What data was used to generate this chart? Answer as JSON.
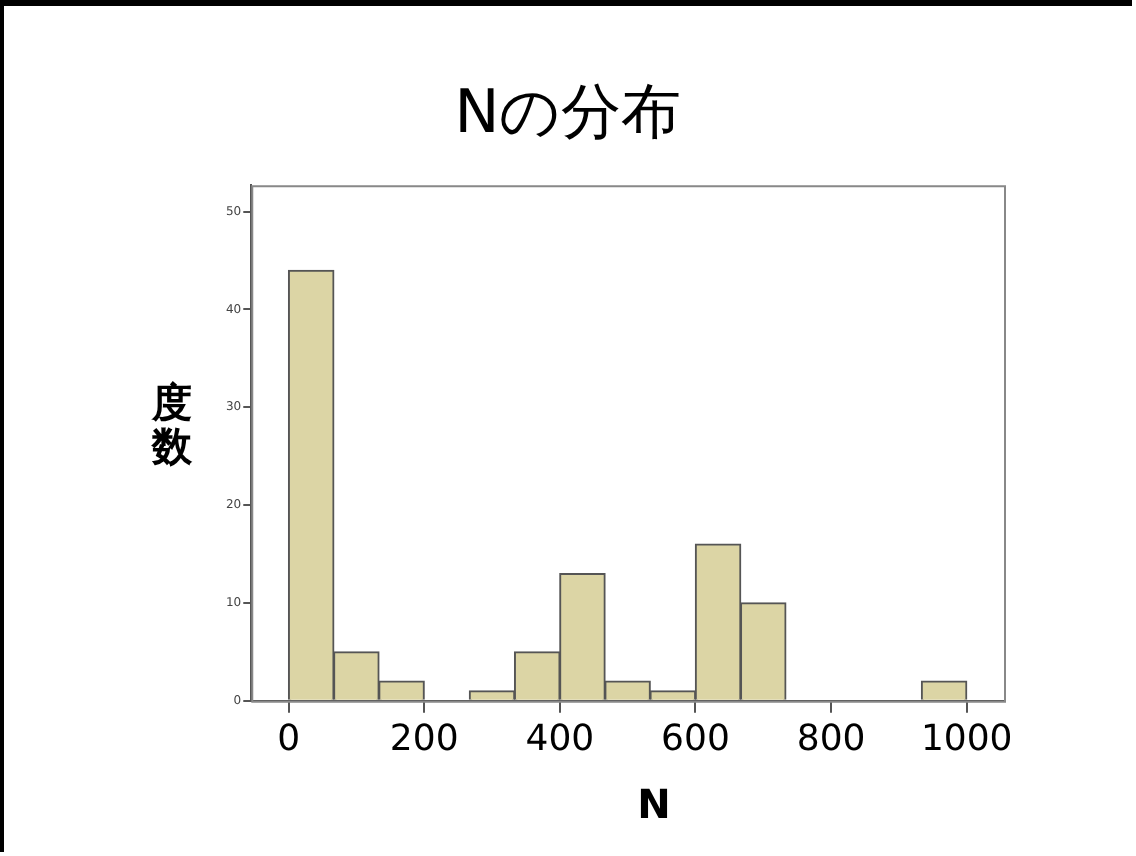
{
  "chart_data": {
    "type": "histogram",
    "title": "Nの分布",
    "xlabel": "N",
    "ylabel": "度数",
    "bins": [
      0,
      66.7,
      133.3,
      200,
      266.7,
      333.3,
      400,
      466.7,
      533.3,
      600,
      666.7,
      733.3,
      800,
      866.7,
      933.3,
      1000
    ],
    "values": [
      44,
      5,
      2,
      0,
      1,
      5,
      13,
      2,
      1,
      16,
      10,
      0,
      0,
      0,
      2
    ],
    "color": "#dcd5a5",
    "xlim": [
      -55,
      1055
    ],
    "xticks": [
      0,
      200,
      400,
      600,
      800,
      1000
    ],
    "ylim": [
      0,
      52.7
    ],
    "yticks": [
      0,
      10,
      20,
      30,
      40,
      50
    ],
    "grid": false,
    "legend": false
  }
}
